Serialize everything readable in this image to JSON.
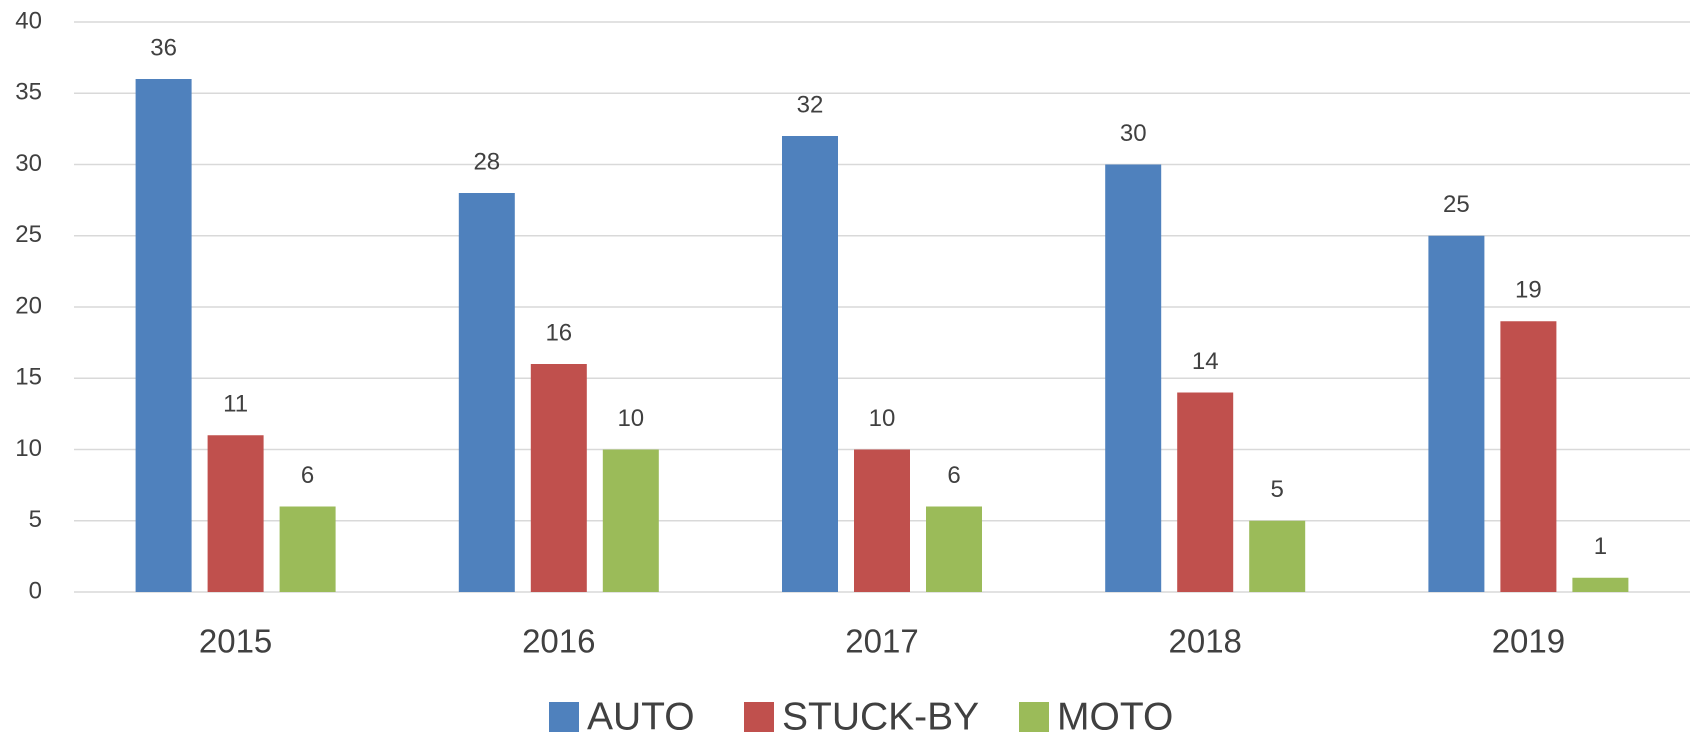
{
  "chart_data": {
    "type": "bar",
    "categories": [
      "2015",
      "2016",
      "2017",
      "2018",
      "2019"
    ],
    "series": [
      {
        "name": "AUTO",
        "color": "#4f81bd",
        "values": [
          36,
          28,
          32,
          30,
          25
        ]
      },
      {
        "name": "STUCK-BY",
        "color": "#c0504d",
        "values": [
          11,
          16,
          10,
          14,
          19
        ]
      },
      {
        "name": "MOTO",
        "color": "#9bbb59",
        "values": [
          6,
          10,
          6,
          5,
          1
        ]
      }
    ],
    "ylim": [
      0,
      40
    ],
    "yticks": [
      0,
      5,
      10,
      15,
      20,
      25,
      30,
      35,
      40
    ],
    "grid": true,
    "legend": "bottom"
  }
}
